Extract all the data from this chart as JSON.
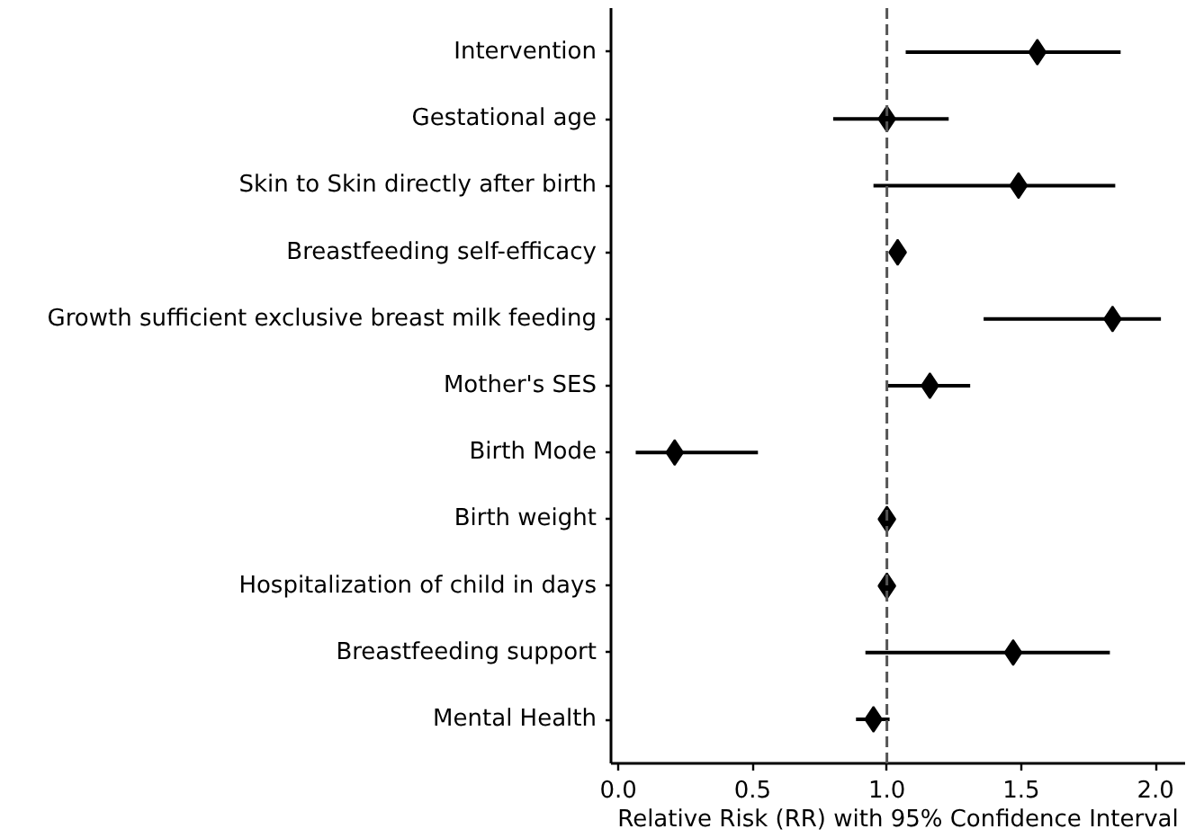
{
  "chart_data": {
    "type": "scatter",
    "orientation": "horizontal",
    "marker": "diamond",
    "xlabel": "Relative Risk (RR) with 95% Confidence Interval",
    "categories": [
      "Intervention",
      "Gestational age",
      "Skin to Skin directly after birth",
      "Breastfeeding self-efficacy",
      "Growth sufficient exclusive breast milk feeding",
      "Mother's SES",
      "Birth Mode",
      "Birth weight",
      "Hospitalization of child in days",
      "Breastfeeding support",
      "Mental Health"
    ],
    "values": [
      1.56,
      1.0,
      1.49,
      1.04,
      1.84,
      1.16,
      0.21,
      1.0,
      1.0,
      1.47,
      0.95
    ],
    "errors": [
      [
        1.07,
        1.87
      ],
      [
        0.8,
        1.23
      ],
      [
        0.95,
        1.85
      ],
      null,
      [
        1.36,
        2.02
      ],
      [
        1.0,
        1.31
      ],
      [
        0.065,
        0.52
      ],
      null,
      null,
      [
        0.92,
        1.83
      ],
      [
        0.885,
        1.01
      ]
    ],
    "color": "#000000",
    "xlim": [
      -0.027,
      2.11
    ],
    "xticks": [
      {
        "value": 0,
        "label": "0.0"
      },
      0.5,
      {
        "value": 1,
        "label": "1.0"
      },
      1.5,
      {
        "value": 2,
        "label": "2.0"
      }
    ],
    "ref_lines": [
      {
        "axis": "x",
        "value": 1,
        "color": "#555555",
        "line_style": "dashed"
      }
    ],
    "grid": false
  }
}
